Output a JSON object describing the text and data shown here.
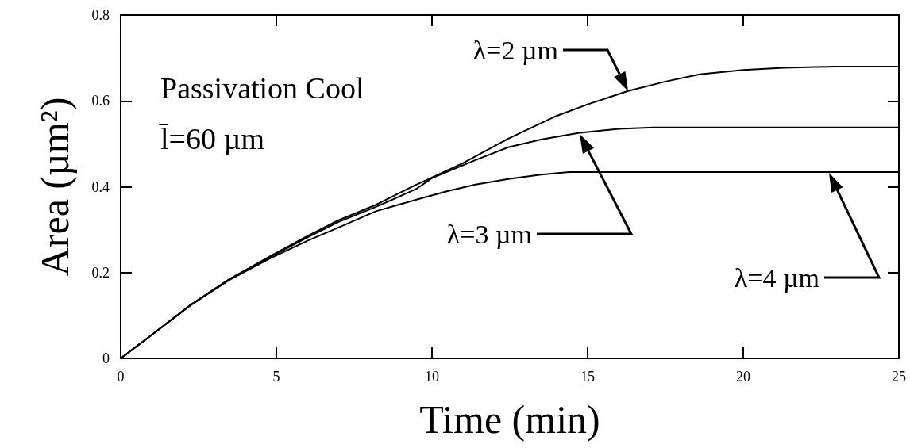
{
  "chart_data": {
    "type": "line",
    "xlabel": "Time (min)",
    "ylabel": "Area (µm²)",
    "xlim": [
      0,
      25
    ],
    "xticks": [
      0,
      5,
      10,
      15,
      20,
      25
    ],
    "ylim": [
      0,
      0.8
    ],
    "yticks": [
      0,
      0.2,
      0.4,
      0.6,
      0.8
    ],
    "grid": false,
    "marker": "none",
    "line_style": "solid",
    "series": [
      {
        "color": "#000000",
        "x": [
          0,
          1,
          2.25,
          3.5,
          4.8,
          6,
          7,
          8.2,
          9.5,
          11,
          12.45,
          14,
          15,
          16.3,
          17.5,
          18.6,
          20,
          21.3,
          23,
          25
        ],
        "values": [
          0,
          0.055,
          0.125,
          0.185,
          0.238,
          0.285,
          0.322,
          0.358,
          0.405,
          0.455,
          0.512,
          0.565,
          0.592,
          0.623,
          0.645,
          0.662,
          0.672,
          0.677,
          0.68,
          0.68
        ]
      },
      {
        "color": "#000000",
        "x": [
          0,
          1,
          2.25,
          3.5,
          4.8,
          6,
          7,
          8.2,
          9.5,
          10,
          11.4,
          12.45,
          13.5,
          14.7,
          16,
          17.1,
          25
        ],
        "values": [
          0,
          0.055,
          0.125,
          0.185,
          0.236,
          0.282,
          0.318,
          0.353,
          0.395,
          0.42,
          0.462,
          0.492,
          0.51,
          0.525,
          0.535,
          0.538,
          0.538
        ]
      },
      {
        "color": "#000000",
        "x": [
          0,
          1,
          2.25,
          3.5,
          4.8,
          6,
          7,
          8.2,
          9.5,
          10.5,
          11.4,
          12.45,
          13.5,
          14.4,
          25
        ],
        "values": [
          0,
          0.055,
          0.124,
          0.183,
          0.233,
          0.274,
          0.305,
          0.343,
          0.37,
          0.39,
          0.405,
          0.418,
          0.428,
          0.434,
          0.434
        ]
      }
    ],
    "annotations": [
      "Passivation Cool",
      "l̄=60 µm",
      "λ=2 µm",
      "λ=3 µm",
      "λ=4 µm"
    ]
  }
}
